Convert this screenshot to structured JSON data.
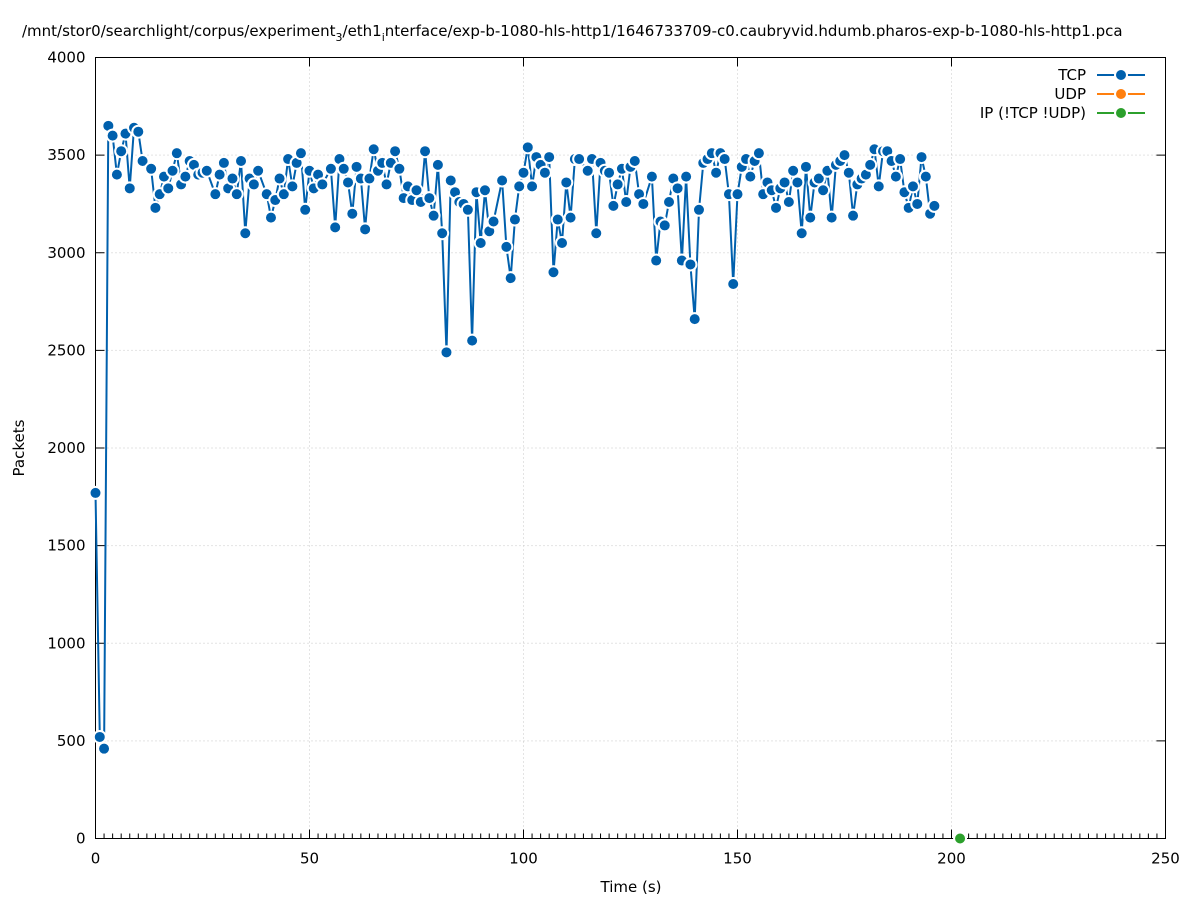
{
  "chart_data": {
    "type": "line",
    "title_main": "/mnt/stor0/searchlight/corpus/experiment",
    "title_sub1": "3",
    "title_mid": "/eth1",
    "title_sub2": "i",
    "title_rest": "nterface/exp-b-1080-hls-http1/1646733709-c0.caubryvid.hdumb.pharos-exp-b-1080-hls-http1.pca",
    "xlabel": "Time (s)",
    "ylabel": "Packets",
    "xlim": [
      0,
      250
    ],
    "ylim": [
      0,
      4000
    ],
    "xticks": [
      "0",
      "50",
      "100",
      "150",
      "200",
      "250"
    ],
    "yticks": [
      "0",
      "500",
      "1000",
      "1500",
      "2000",
      "2500",
      "3000",
      "3500",
      "4000"
    ],
    "grid": true,
    "legend_position": "top-right",
    "series": [
      {
        "name": "TCP",
        "color": "#0060ad",
        "points": [
          [
            0,
            1770
          ],
          [
            1,
            520
          ],
          [
            2,
            460
          ],
          [
            3,
            3650
          ],
          [
            4,
            3600
          ],
          [
            5,
            3400
          ],
          [
            6,
            3520
          ],
          [
            7,
            3610
          ],
          [
            8,
            3330
          ],
          [
            9,
            3640
          ],
          [
            10,
            3620
          ],
          [
            11,
            3470
          ],
          [
            13,
            3430
          ],
          [
            14,
            3230
          ],
          [
            15,
            3300
          ],
          [
            16,
            3390
          ],
          [
            17,
            3330
          ],
          [
            18,
            3420
          ],
          [
            19,
            3510
          ],
          [
            20,
            3350
          ],
          [
            21,
            3390
          ],
          [
            22,
            3470
          ],
          [
            23,
            3450
          ],
          [
            24,
            3400
          ],
          [
            25,
            3410
          ],
          [
            26,
            3420
          ],
          [
            28,
            3300
          ],
          [
            29,
            3400
          ],
          [
            30,
            3460
          ],
          [
            31,
            3330
          ],
          [
            32,
            3380
          ],
          [
            33,
            3300
          ],
          [
            34,
            3470
          ],
          [
            35,
            3100
          ],
          [
            36,
            3380
          ],
          [
            37,
            3350
          ],
          [
            38,
            3420
          ],
          [
            40,
            3300
          ],
          [
            41,
            3180
          ],
          [
            42,
            3270
          ],
          [
            43,
            3380
          ],
          [
            44,
            3300
          ],
          [
            45,
            3480
          ],
          [
            46,
            3340
          ],
          [
            47,
            3460
          ],
          [
            48,
            3510
          ],
          [
            49,
            3220
          ],
          [
            50,
            3420
          ],
          [
            51,
            3330
          ],
          [
            52,
            3400
          ],
          [
            53,
            3350
          ],
          [
            55,
            3430
          ],
          [
            56,
            3130
          ],
          [
            57,
            3480
          ],
          [
            58,
            3430
          ],
          [
            59,
            3360
          ],
          [
            60,
            3200
          ],
          [
            61,
            3440
          ],
          [
            62,
            3380
          ],
          [
            63,
            3120
          ],
          [
            64,
            3380
          ],
          [
            65,
            3530
          ],
          [
            66,
            3420
          ],
          [
            67,
            3460
          ],
          [
            68,
            3350
          ],
          [
            69,
            3460
          ],
          [
            70,
            3520
          ],
          [
            71,
            3430
          ],
          [
            72,
            3280
          ],
          [
            73,
            3340
          ],
          [
            74,
            3270
          ],
          [
            75,
            3320
          ],
          [
            76,
            3260
          ],
          [
            77,
            3520
          ],
          [
            78,
            3280
          ],
          [
            79,
            3190
          ],
          [
            80,
            3450
          ],
          [
            81,
            3100
          ],
          [
            82,
            2490
          ],
          [
            83,
            3370
          ],
          [
            84,
            3310
          ],
          [
            85,
            3260
          ],
          [
            86,
            3250
          ],
          [
            87,
            3220
          ],
          [
            88,
            2550
          ],
          [
            89,
            3310
          ],
          [
            90,
            3050
          ],
          [
            91,
            3320
          ],
          [
            92,
            3110
          ],
          [
            93,
            3160
          ],
          [
            95,
            3370
          ],
          [
            96,
            3030
          ],
          [
            97,
            2870
          ],
          [
            98,
            3170
          ],
          [
            99,
            3340
          ],
          [
            100,
            3410
          ],
          [
            101,
            3540
          ],
          [
            102,
            3340
          ],
          [
            103,
            3490
          ],
          [
            104,
            3450
          ],
          [
            105,
            3410
          ],
          [
            106,
            3490
          ],
          [
            107,
            2900
          ],
          [
            108,
            3170
          ],
          [
            109,
            3050
          ],
          [
            110,
            3360
          ],
          [
            111,
            3180
          ],
          [
            112,
            3480
          ],
          [
            113,
            3480
          ],
          [
            115,
            3420
          ],
          [
            116,
            3480
          ],
          [
            117,
            3100
          ],
          [
            118,
            3460
          ],
          [
            119,
            3420
          ],
          [
            120,
            3410
          ],
          [
            121,
            3240
          ],
          [
            122,
            3350
          ],
          [
            123,
            3430
          ],
          [
            124,
            3260
          ],
          [
            125,
            3440
          ],
          [
            126,
            3470
          ],
          [
            127,
            3300
          ],
          [
            128,
            3250
          ],
          [
            130,
            3390
          ],
          [
            131,
            2960
          ],
          [
            132,
            3160
          ],
          [
            133,
            3140
          ],
          [
            134,
            3260
          ],
          [
            135,
            3380
          ],
          [
            136,
            3330
          ],
          [
            137,
            2960
          ],
          [
            138,
            3390
          ],
          [
            139,
            2940
          ],
          [
            140,
            2660
          ],
          [
            141,
            3220
          ],
          [
            142,
            3460
          ],
          [
            143,
            3480
          ],
          [
            144,
            3510
          ],
          [
            145,
            3410
          ],
          [
            146,
            3510
          ],
          [
            147,
            3480
          ],
          [
            148,
            3300
          ],
          [
            149,
            2840
          ],
          [
            150,
            3300
          ],
          [
            151,
            3440
          ],
          [
            152,
            3480
          ],
          [
            153,
            3390
          ],
          [
            154,
            3470
          ],
          [
            155,
            3510
          ],
          [
            156,
            3300
          ],
          [
            157,
            3360
          ],
          [
            158,
            3320
          ],
          [
            159,
            3230
          ],
          [
            160,
            3330
          ],
          [
            161,
            3360
          ],
          [
            162,
            3260
          ],
          [
            163,
            3420
          ],
          [
            164,
            3360
          ],
          [
            165,
            3100
          ],
          [
            166,
            3440
          ],
          [
            167,
            3180
          ],
          [
            168,
            3360
          ],
          [
            169,
            3380
          ],
          [
            170,
            3320
          ],
          [
            171,
            3420
          ],
          [
            172,
            3180
          ],
          [
            173,
            3450
          ],
          [
            174,
            3470
          ],
          [
            175,
            3500
          ],
          [
            176,
            3410
          ],
          [
            177,
            3190
          ],
          [
            178,
            3350
          ],
          [
            179,
            3380
          ],
          [
            180,
            3400
          ],
          [
            181,
            3450
          ],
          [
            182,
            3530
          ],
          [
            183,
            3340
          ],
          [
            184,
            3520
          ],
          [
            185,
            3520
          ],
          [
            186,
            3470
          ],
          [
            187,
            3390
          ],
          [
            188,
            3480
          ],
          [
            189,
            3310
          ],
          [
            190,
            3230
          ],
          [
            191,
            3340
          ],
          [
            192,
            3250
          ],
          [
            193,
            3490
          ],
          [
            194,
            3390
          ],
          [
            195,
            3200
          ],
          [
            196,
            3240
          ]
        ]
      },
      {
        "name": "UDP",
        "color": "#ff7f0e",
        "points": []
      },
      {
        "name": "IP (!TCP  !UDP)",
        "color": "#2ca02c",
        "points": [
          [
            202,
            0
          ]
        ]
      }
    ]
  }
}
